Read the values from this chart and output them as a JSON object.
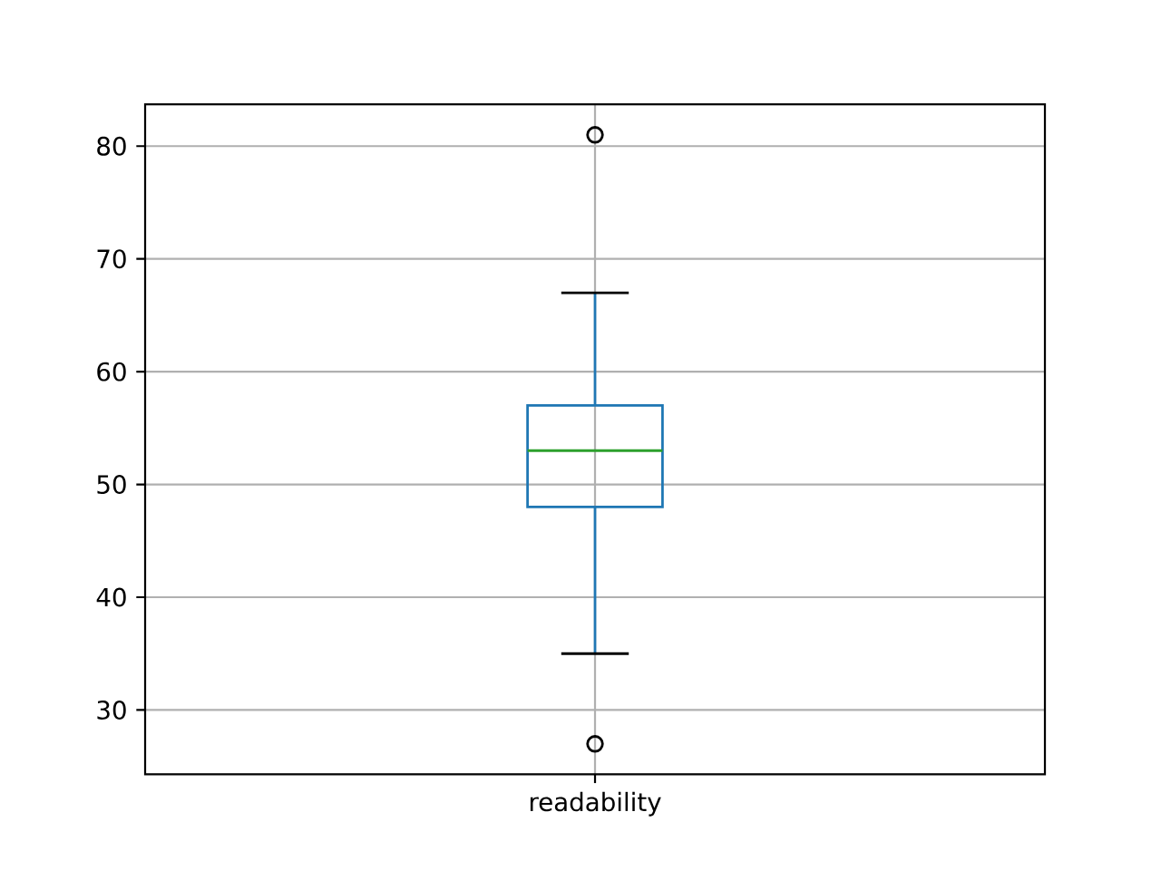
{
  "chart_data": {
    "type": "box",
    "categories": [
      "readability"
    ],
    "color": "#1f77b4",
    "boxes": [
      {
        "low": 35,
        "q1": 48,
        "median": 53,
        "q3": 57,
        "high": 67,
        "outliers": [
          27,
          81
        ]
      }
    ],
    "ylim": [
      24.3,
      83.7
    ],
    "yticks": [
      30,
      40,
      50,
      60,
      70,
      80
    ],
    "grid": true
  }
}
